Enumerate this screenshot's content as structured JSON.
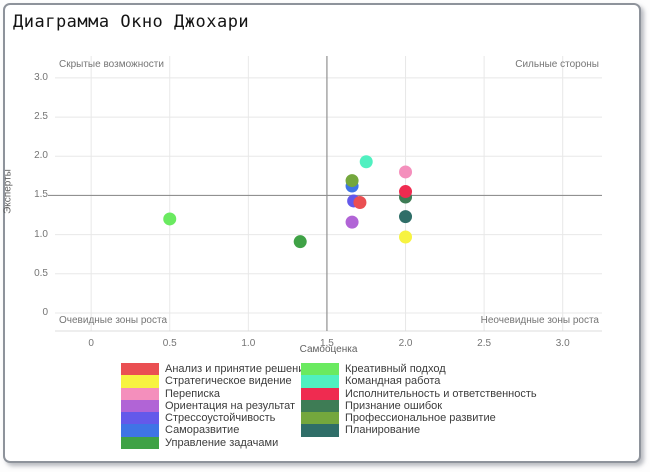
{
  "chart_data": {
    "type": "scatter",
    "title": "Диаграмма Окно Джохари",
    "xlabel": "Самооценка",
    "ylabel": "Эксперты",
    "xlim": [
      -0.23,
      3.25
    ],
    "ylim": [
      -0.23,
      3.28
    ],
    "xticks": [
      0,
      0.5,
      1.0,
      1.5,
      2.0,
      2.5,
      3.0
    ],
    "yticks": [
      0,
      0.5,
      1.0,
      1.5,
      2.0,
      2.5,
      3.0
    ],
    "xtick_labels": [
      "0",
      "0.5",
      "1.0",
      "1.5",
      "2.0",
      "2.5",
      "3.0"
    ],
    "ytick_labels": [
      "0",
      "0.5",
      "1.0",
      "1.5",
      "2.0",
      "2.5",
      "3.0"
    ],
    "grid": true,
    "grid_color": "#e8e8e8",
    "axis_line_color": "#dcdcdc",
    "divider": {
      "x": 1.5,
      "y": 1.5,
      "color": "#919191"
    },
    "point_radius": 6.5,
    "corner_labels": {
      "top_left": "Скрытые возможности",
      "top_right": "Сильные стороны",
      "bottom_left": "Очевидные зоны роста",
      "bottom_right": "Неочевидные зоны роста"
    },
    "points": [
      {
        "name": "Креативный подход",
        "color": "#6aea60",
        "x": 0.5,
        "y": 1.2
      },
      {
        "name": "Управление задачами",
        "color": "#3fa246",
        "x": 1.33,
        "y": 0.91
      },
      {
        "name": "Командная работа",
        "color": "#50f0c0",
        "x": 1.75,
        "y": 1.93
      },
      {
        "name": "Переписка",
        "color": "#f48fbc",
        "x": 2.0,
        "y": 1.8
      },
      {
        "name": "Саморазвитие",
        "color": "#3f74e6",
        "x": 1.66,
        "y": 1.62
      },
      {
        "name": "Профессиональное развитие",
        "color": "#74a73d",
        "x": 1.66,
        "y": 1.69
      },
      {
        "name": "Стрессоустойчивость",
        "color": "#6459ea",
        "x": 1.67,
        "y": 1.43
      },
      {
        "name": "Анализ и принятие решений",
        "color": "#ea4f52",
        "x": 1.71,
        "y": 1.41
      },
      {
        "name": "Признание ошибок",
        "color": "#3e7c55",
        "x": 2.0,
        "y": 1.48
      },
      {
        "name": "Исполнительность и ответственность",
        "color": "#ef2b50",
        "x": 2.0,
        "y": 1.55
      },
      {
        "name": "Планирование",
        "color": "#2f6e68",
        "x": 2.0,
        "y": 1.23
      },
      {
        "name": "Стратегическое видение",
        "color": "#f7f340",
        "x": 2.0,
        "y": 0.97
      },
      {
        "name": "Ориентация на результат",
        "color": "#b164d6",
        "x": 1.66,
        "y": 1.16
      }
    ],
    "legend_position": "bottom"
  },
  "legend": {
    "columns": [
      {
        "items": [
          {
            "label": "Анализ и принятие решений",
            "color": "#ea4f52"
          },
          {
            "label": "Стратегическое видение",
            "color": "#f7f340"
          },
          {
            "label": "Переписка",
            "color": "#f48fbc"
          },
          {
            "label": "Ориентация на результат",
            "color": "#b164d6"
          },
          {
            "label": "Стрессоустойчивость",
            "color": "#6459ea"
          },
          {
            "label": "Саморазвитие",
            "color": "#3f74e6"
          },
          {
            "label": "Управление задачами",
            "color": "#3fa246"
          }
        ]
      },
      {
        "items": [
          {
            "label": "Креативный подход",
            "color": "#6aea60"
          },
          {
            "label": "Командная работа",
            "color": "#50f0c0"
          },
          {
            "label": "Исполнительность и ответственность",
            "color": "#ef2b50"
          },
          {
            "label": "Признание ошибок",
            "color": "#3e7c55"
          },
          {
            "label": "Профессиональное развитие",
            "color": "#74a73d"
          },
          {
            "label": "Планирование",
            "color": "#2f6e68"
          }
        ]
      }
    ]
  }
}
